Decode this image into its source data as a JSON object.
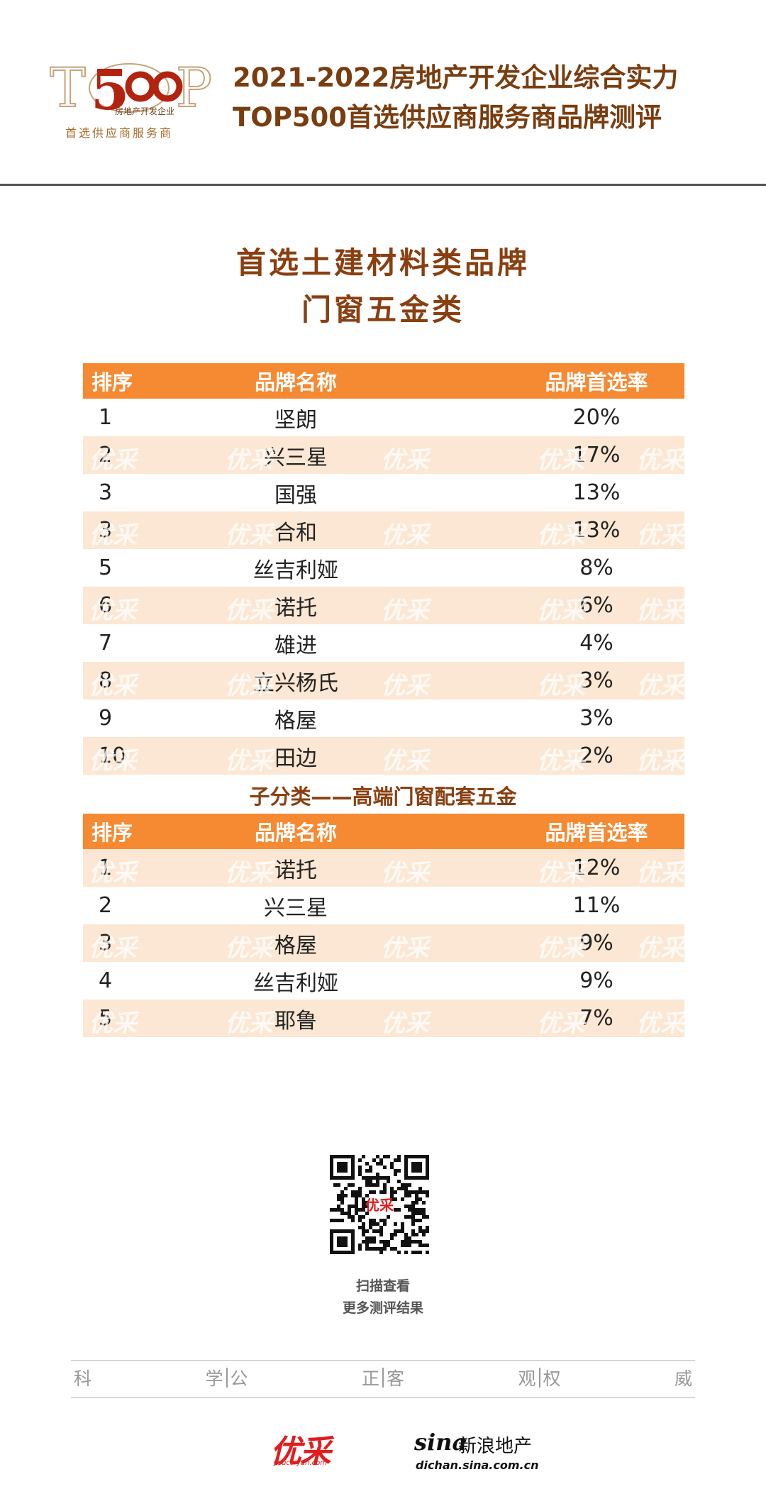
{
  "header": {
    "logo_sub": "首选供应商服务商",
    "logo_inner": "房地产开发企业",
    "title_line1": "2021-2022房地产开发企业综合实力",
    "title_line2": "TOP500首选供应商服务商品牌测评"
  },
  "section": {
    "title_line1": "首选土建材料类品牌",
    "title_line2": "门窗五金类"
  },
  "columns": {
    "rank": "排序",
    "name": "品牌名称",
    "rate": "品牌首选率"
  },
  "table1": [
    {
      "rank": "1",
      "name": "坚朗",
      "rate": "20%"
    },
    {
      "rank": "2",
      "name": "兴三星",
      "rate": "17%"
    },
    {
      "rank": "3",
      "name": "国强",
      "rate": "13%"
    },
    {
      "rank": "3",
      "name": "合和",
      "rate": "13%"
    },
    {
      "rank": "5",
      "name": "丝吉利娅",
      "rate": "8%"
    },
    {
      "rank": "6",
      "name": "诺托",
      "rate": "6%"
    },
    {
      "rank": "7",
      "name": "雄进",
      "rate": "4%"
    },
    {
      "rank": "8",
      "name": "立兴杨氏",
      "rate": "3%"
    },
    {
      "rank": "9",
      "name": "格屋",
      "rate": "3%"
    },
    {
      "rank": "10",
      "name": "田边",
      "rate": "2%"
    }
  ],
  "subcategory": "子分类——高端门窗配套五金",
  "table2": [
    {
      "rank": "1",
      "name": "诺托",
      "rate": "12%"
    },
    {
      "rank": "2",
      "name": "兴三星",
      "rate": "11%"
    },
    {
      "rank": "3",
      "name": "格屋",
      "rate": "9%"
    },
    {
      "rank": "4",
      "name": "丝吉利娅",
      "rate": "9%"
    },
    {
      "rank": "5",
      "name": "耶鲁",
      "rate": "7%"
    }
  ],
  "qr": {
    "caption_line1": "扫描查看",
    "caption_line2": "更多测评结果"
  },
  "motto": [
    [
      "科",
      "学"
    ],
    [
      "公",
      "正"
    ],
    [
      "客",
      "观"
    ],
    [
      "权",
      "威"
    ]
  ],
  "footer": {
    "youcai_logo": "优采",
    "youcai_url": "youcaiyun.com",
    "sina_logo": "sina",
    "sina_name": "新浪地产",
    "sina_url": "dichan.sina.com.cn"
  },
  "colors": {
    "header_orange": "#f58a33",
    "row_shade": "#fbe7d3",
    "title_brown": "#8a3f10"
  }
}
